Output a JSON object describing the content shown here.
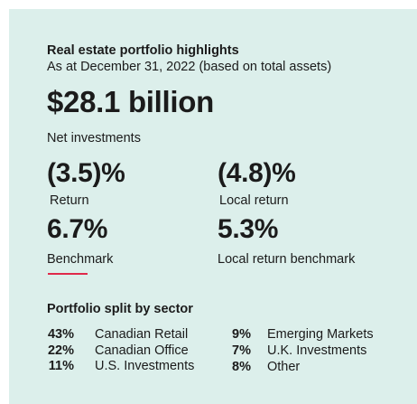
{
  "header": {
    "title": "Real estate portfolio highlights",
    "subtitle": "As at December 31, 2022 (based on total assets)"
  },
  "headline": {
    "value": "$28.1 billion",
    "label": "Net investments"
  },
  "metrics": [
    {
      "value": "(3.5)%",
      "label": "Return"
    },
    {
      "value": "(4.8)%",
      "label": "Local return"
    },
    {
      "value": "6.7%",
      "label": "Benchmark"
    },
    {
      "value": "5.3%",
      "label": "Local return benchmark"
    }
  ],
  "accent_color": "#e0294a",
  "background_color": "#dcefeb",
  "sector_split": {
    "title": "Portfolio split by sector",
    "left": [
      {
        "pct": "43%",
        "name": "Canadian Retail"
      },
      {
        "pct": "22%",
        "name": "Canadian Office"
      },
      {
        "pct": "11%",
        "name": "U.S. Investments"
      }
    ],
    "right": [
      {
        "pct": "9%",
        "name": "Emerging Markets"
      },
      {
        "pct": "7%",
        "name": "U.K. Investments"
      },
      {
        "pct": "8%",
        "name": "Other"
      }
    ]
  }
}
